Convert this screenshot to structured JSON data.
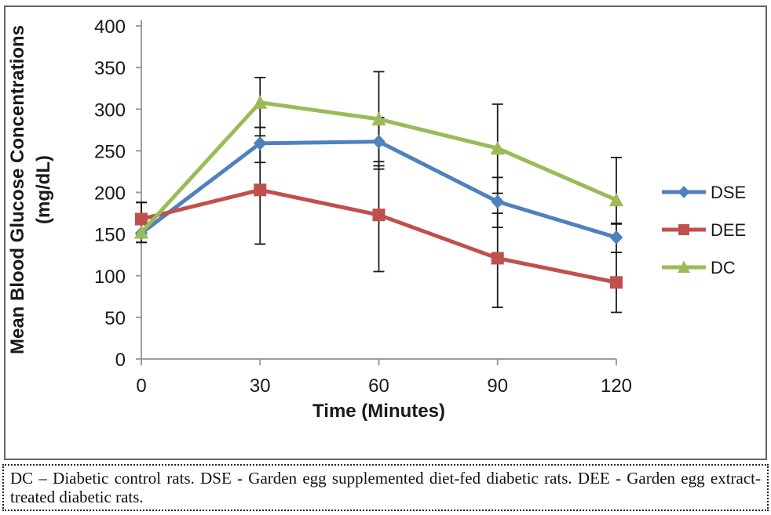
{
  "chart_data": {
    "type": "line",
    "title": "",
    "xlabel": "Time (Minutes)",
    "ylabel": "Mean Blood Glucose Concentrations (mg/dL)",
    "ylabel_line1": "Mean Blood Glucose Concentrations",
    "ylabel_line2": "(mg/dL)",
    "x": [
      0,
      30,
      60,
      90,
      120
    ],
    "x_tick_labels": [
      "0",
      "30",
      "60",
      "90",
      "120"
    ],
    "y_ticks": [
      0,
      50,
      100,
      150,
      200,
      250,
      300,
      350,
      400
    ],
    "ylim": [
      0,
      400
    ],
    "grid": false,
    "legend_position": "right",
    "error_bar_color": "#1b1b1b",
    "axis_color": "#9d9d9d",
    "text_color": "#1a1a1a",
    "series": [
      {
        "name": "DSE",
        "color": "#4F81BD",
        "marker": "diamond",
        "values": [
          151,
          259,
          261,
          189,
          146
        ],
        "error_low": [
          140,
          236,
          228,
          158,
          128
        ],
        "error_high": [
          188,
          278,
          290,
          218,
          163
        ]
      },
      {
        "name": "DEE",
        "color": "#C0504D",
        "marker": "square",
        "values": [
          168,
          203,
          173,
          121,
          92
        ],
        "error_low": [
          140,
          138,
          105,
          62,
          56
        ],
        "error_high": [
          188,
          268,
          237,
          175,
          128
        ]
      },
      {
        "name": "DC",
        "color": "#9BBB59",
        "marker": "triangle",
        "values": [
          152,
          308,
          288,
          253,
          191
        ],
        "error_low": [
          140,
          278,
          232,
          199,
          162
        ],
        "error_high": [
          188,
          338,
          345,
          306,
          242
        ]
      }
    ]
  },
  "caption": {
    "text": "DC – Diabetic control rats. DSE - Garden egg supplemented diet-fed diabetic rats. DEE - Garden egg extract-treated diabetic rats."
  }
}
